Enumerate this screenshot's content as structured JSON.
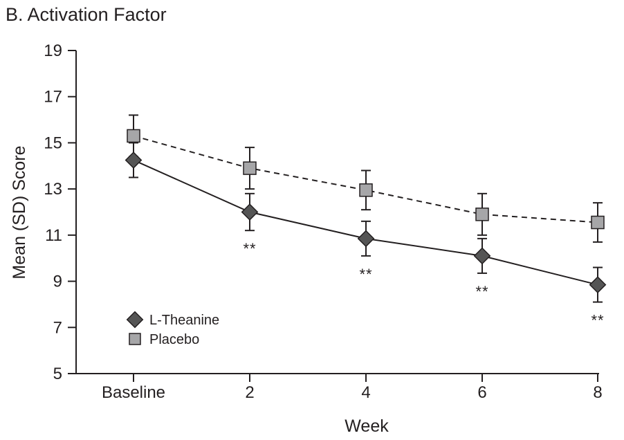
{
  "chart_data": {
    "type": "line",
    "title": "B. Activation Factor",
    "xlabel": "Week",
    "ylabel": "Mean (SD) Score",
    "categories": [
      "Baseline",
      "2",
      "4",
      "6",
      "8"
    ],
    "ylim": [
      5,
      19
    ],
    "yticks": [
      5,
      7,
      9,
      11,
      13,
      15,
      17,
      19
    ],
    "grid": false,
    "legend_position": "bottom-left",
    "series": [
      {
        "name": "L-Theanine",
        "marker": "diamond",
        "line_style": "solid",
        "color": "#555555",
        "values": [
          14.25,
          12.0,
          10.85,
          10.1,
          8.85
        ],
        "error": [
          0.75,
          0.8,
          0.75,
          0.75,
          0.75
        ]
      },
      {
        "name": "Placebo",
        "marker": "square",
        "line_style": "dashed",
        "color": "#a6a6a8",
        "values": [
          15.3,
          13.9,
          12.95,
          11.9,
          11.55
        ],
        "error": [
          0.9,
          0.9,
          0.85,
          0.9,
          0.85
        ]
      }
    ],
    "annotations": [
      {
        "category": "2",
        "text": "**"
      },
      {
        "category": "4",
        "text": "**"
      },
      {
        "category": "6",
        "text": "**"
      },
      {
        "category": "8",
        "text": "**"
      }
    ]
  }
}
